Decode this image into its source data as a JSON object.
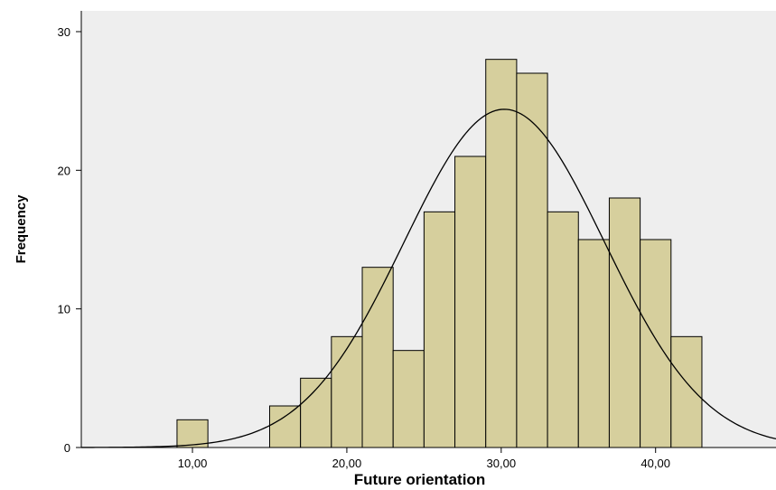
{
  "chart_data": {
    "type": "bar",
    "subtype": "histogram",
    "xlabel": "Future orientation",
    "ylabel": "Frequency",
    "xlim": [
      2.8,
      47.8
    ],
    "ylim": [
      0,
      31.5
    ],
    "bin_width": 2.0,
    "bins": [
      {
        "start": 9.0,
        "end": 11.0,
        "count": 2
      },
      {
        "start": 15.0,
        "end": 17.0,
        "count": 3
      },
      {
        "start": 17.0,
        "end": 19.0,
        "count": 5
      },
      {
        "start": 19.0,
        "end": 21.0,
        "count": 8
      },
      {
        "start": 21.0,
        "end": 23.0,
        "count": 13
      },
      {
        "start": 23.0,
        "end": 25.0,
        "count": 7
      },
      {
        "start": 25.0,
        "end": 27.0,
        "count": 17
      },
      {
        "start": 27.0,
        "end": 29.0,
        "count": 21
      },
      {
        "start": 29.0,
        "end": 31.0,
        "count": 28
      },
      {
        "start": 31.0,
        "end": 33.0,
        "count": 27
      },
      {
        "start": 33.0,
        "end": 35.0,
        "count": 17
      },
      {
        "start": 35.0,
        "end": 37.0,
        "count": 15
      },
      {
        "start": 37.0,
        "end": 39.0,
        "count": 18
      },
      {
        "start": 39.0,
        "end": 41.0,
        "count": 15
      },
      {
        "start": 41.0,
        "end": 43.0,
        "count": 8
      }
    ],
    "x_ticks": [
      {
        "value": 10,
        "label": "10,00"
      },
      {
        "value": 20,
        "label": "20,00"
      },
      {
        "value": 30,
        "label": "30,00"
      },
      {
        "value": 40,
        "label": "40,00"
      }
    ],
    "y_ticks": [
      {
        "value": 0,
        "label": "0"
      },
      {
        "value": 10,
        "label": "10"
      },
      {
        "value": 20,
        "label": "20"
      },
      {
        "value": 30,
        "label": "30"
      }
    ],
    "normal_curve": {
      "mean": 30.2,
      "sd": 6.5,
      "peak": 24.4
    },
    "grid": false,
    "colors": {
      "bar_fill": "#d6cf9d",
      "bar_stroke": "#000000",
      "plot_background": "#eeeeee",
      "curve": "#000000"
    }
  }
}
